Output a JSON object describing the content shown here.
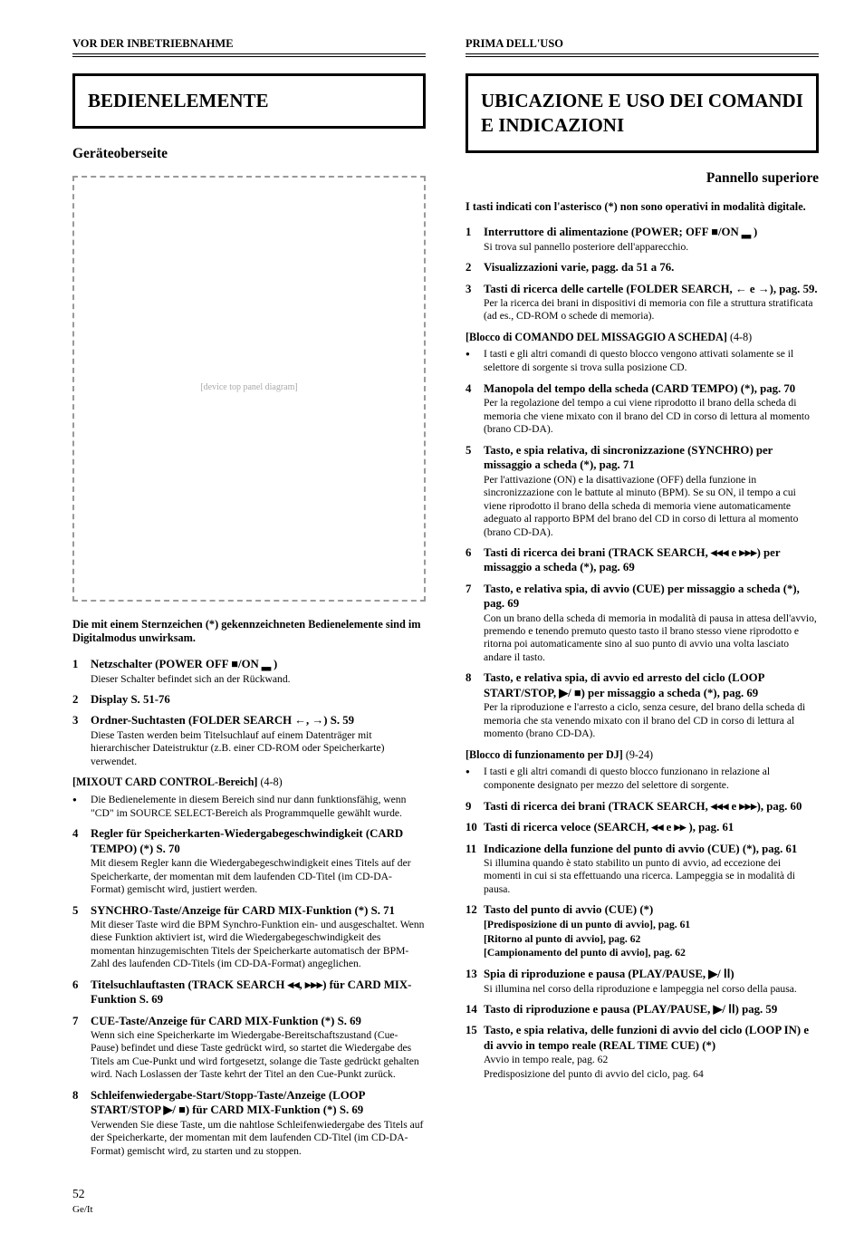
{
  "page_number": "52",
  "footer_lang": "Ge/It",
  "left": {
    "header": "VOR DER INBETRIEBNAHME",
    "box_title": "BEDIENELEMENTE",
    "panel_subtitle": "Geräteoberseite",
    "diagram_placeholder": "[device top panel diagram]",
    "intro_note": "Die mit einem Sternzeichen (*) gekennzeichneten Bedienelemente sind im Digitalmodus unwirksam.",
    "items": [
      {
        "num": "1",
        "title": "Netzschalter (POWER OFF ■/ON ▂ )",
        "desc": "Dieser Schalter befindet sich an der Rückwand."
      },
      {
        "num": "2",
        "title": "Display        S. 51-76"
      },
      {
        "num": "3",
        "title": "Ordner-Suchtasten (FOLDER SEARCH ←, →)     S. 59",
        "desc": "Diese Tasten werden beim Titelsuchlauf auf einem Datenträger mit hierarchischer Dateistruktur (z.B. einer CD-ROM oder Speicherkarte) verwendet."
      }
    ],
    "block1_head": "[MIXOUT CARD CONTROL-Bereich]",
    "block1_range": "(4-8)",
    "block1_bullet": "Die Bedienelemente in diesem Bereich sind nur dann funktionsfähig, wenn \"CD\" im SOURCE SELECT-Bereich als Programmquelle gewählt wurde.",
    "items2": [
      {
        "num": "4",
        "title": "Regler für Speicherkarten-Wiedergabegeschwindigkeit (CARD TEMPO) (*)        S. 70",
        "desc": "Mit diesem Regler kann die Wiedergabegeschwindigkeit eines Titels auf der Speicherkarte, der momentan mit dem laufenden CD-Titel (im CD-DA-Format) gemischt wird, justiert werden."
      },
      {
        "num": "5",
        "title": "SYNCHRO-Taste/Anzeige für CARD MIX-Funktion (*)     S. 71",
        "desc": "Mit dieser Taste wird die BPM Synchro-Funktion ein- und ausgeschaltet. Wenn diese Funktion aktiviert ist, wird die Wiedergabegeschwindigkeit des momentan hinzugemischten Titels der Speicherkarte automatisch der BPM-Zahl des laufenden CD-Titels (im CD-DA-Format) angeglichen."
      },
      {
        "num": "6",
        "title": "Titelsuchlauftasten (TRACK SEARCH ◂◂, ▸▸▸) für CARD MIX-Funktion        S. 69"
      },
      {
        "num": "7",
        "title": "CUE-Taste/Anzeige für CARD MIX-Funktion (*)     S. 69",
        "desc": "Wenn sich eine Speicherkarte im Wiedergabe-Bereitschaftszustand (Cue-Pause) befindet und diese Taste gedrückt wird, so startet die Wiedergabe des Titels am Cue-Punkt und wird fortgesetzt, solange die Taste gedrückt gehalten wird. Nach Loslassen der Taste kehrt der Titel an den Cue-Punkt zurück."
      },
      {
        "num": "8",
        "title": "Schleifenwiedergabe-Start/Stopp-Taste/Anzeige (LOOP START/STOP ▶/ ■) für CARD MIX-Funktion (*)     S. 69",
        "desc": "Verwenden Sie diese Taste, um die nahtlose Schleifenwiedergabe des Titels auf der Speicherkarte, der momentan mit dem laufenden CD-Titel (im CD-DA-Format) gemischt wird, zu starten und zu stoppen."
      }
    ]
  },
  "right": {
    "header": "PRIMA DELL'USO",
    "box_title": "UBICAZIONE E USO DEI COMANDI E INDICAZIONI",
    "panel_subtitle": "Pannello superiore",
    "intro_note": "I tasti indicati con l'asterisco (*) non sono operativi in modalità digitale.",
    "items": [
      {
        "num": "1",
        "title": "Interruttore di alimentazione (POWER; OFF ■/ON ▂ )",
        "desc": "Si trova sul pannello posteriore dell'apparecchio."
      },
      {
        "num": "2",
        "title": "Visualizzazioni varie,      pagg. da 51 a 76."
      },
      {
        "num": "3",
        "title": "Tasti di ricerca delle cartelle (FOLDER SEARCH, ← e →),      pag. 59.",
        "desc": "Per la ricerca dei brani in dispositivi di memoria con file a struttura stratificata (ad es., CD-ROM o schede di memoria)."
      }
    ],
    "block1_head": "[Blocco di COMANDO DEL MISSAGGIO A SCHEDA]",
    "block1_range": "(4-8)",
    "block1_bullet": "I tasti e gli altri comandi di questo blocco vengono attivati solamente se il selettore di sorgente si trova sulla posizione CD.",
    "items2": [
      {
        "num": "4",
        "title": "Manopola del tempo della scheda (CARD TEMPO) (*),        pag. 70",
        "desc": "Per la regolazione del tempo a cui viene riprodotto il brano della scheda di memoria che viene mixato con il brano del CD in corso di lettura al momento (brano CD-DA)."
      },
      {
        "num": "5",
        "title": "Tasto, e spia relativa, di sincronizzazione (SYNCHRO) per missaggio a scheda  (*),      pag. 71",
        "desc": "Per l'attivazione (ON) e la disattivazione (OFF) della funzione in sincronizzazione con le battute al minuto (BPM). Se su ON, il tempo a cui viene riprodotto il brano della scheda di memoria viene automaticamente adeguato al rapporto BPM del brano del CD in corso di lettura al momento (brano CD-DA)."
      },
      {
        "num": "6",
        "title": "Tasti di ricerca dei brani (TRACK SEARCH, ◂◂◂ e ▸▸▸) per missaggio a scheda (*),     pag. 69"
      },
      {
        "num": "7",
        "title": "Tasto, e relativa spia, di avvio (CUE) per missaggio a scheda (*),       pag. 69",
        "desc": "Con un brano della scheda di memoria in modalità di pausa in attesa dell'avvio, premendo e tenendo premuto questo tasto il brano stesso viene riprodotto e ritorna poi automaticamente sino al suo punto di avvio una volta lasciato andare il tasto."
      },
      {
        "num": "8",
        "title": "Tasto, e relativa spia, di avvio ed arresto del ciclo (LOOP START/STOP, ▶/ ■) per missaggio a scheda (*),     pag. 69",
        "desc": "Per la riproduzione e l'arresto a ciclo, senza cesure, del brano della scheda di memoria che sta venendo mixato con il brano del CD in corso di lettura al momento (brano CD-DA)."
      }
    ],
    "block2_head": "[Blocco di funzionamento per DJ]",
    "block2_range": "(9-24)",
    "block2_bullet": "I tasti e gli altri comandi di questo blocco funzionano in relazione al componente designato per mezzo del selettore di sorgente.",
    "items3": [
      {
        "num": "9",
        "title": "Tasti di ricerca dei brani (TRACK SEARCH, ◂◂◂ e ▸▸▸),        pag. 60"
      },
      {
        "num": "10",
        "title": "Tasti di ricerca veloce (SEARCH, ◂◂ e ▸▸ ),       pag. 61"
      },
      {
        "num": "11",
        "title": "Indicazione della funzione del punto di avvio (CUE) (*),        pag. 61",
        "desc": "Si illumina quando è stato stabilito un punto di avvio, ad eccezione dei momenti in cui si sta effettuando una ricerca. Lampeggia se in modalità di pausa."
      },
      {
        "num": "12",
        "title": "Tasto del punto di avvio (CUE) (*)",
        "sublines": [
          "[Predisposizione di un punto di avvio],      pag. 61",
          "[Ritorno al punto di avvio],      pag. 62",
          "[Campionamento del punto di avvio],      pag. 62"
        ]
      },
      {
        "num": "13",
        "title": "Spia di riproduzione e pausa (PLAY/PAUSE, ▶/ ⅠⅠ)",
        "desc": "Si illumina nel corso della riproduzione e lampeggia nel corso della pausa."
      },
      {
        "num": "14",
        "title": "Tasto di riproduzione e pausa (PLAY/PAUSE, ▶/ ⅠⅠ)      pag. 59"
      },
      {
        "num": "15",
        "title": "Tasto, e spia relativa, delle funzioni di avvio del ciclo (LOOP IN) e di avvio in tempo reale (REAL TIME CUE) (*)",
        "sublines": [
          "Avvio in tempo reale,       pag. 62",
          "Predisposizione del punto di avvio del ciclo,       pag. 64"
        ]
      }
    ]
  }
}
